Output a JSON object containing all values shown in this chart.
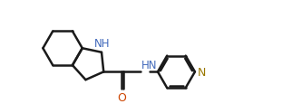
{
  "bg_color": "#ffffff",
  "line_color": "#1a1a1a",
  "N_color": "#4169bb",
  "O_color": "#cc4400",
  "pyN_color": "#997700",
  "line_width": 1.8,
  "font_size": 9,
  "xlim": [
    0,
    9.5
  ],
  "ylim": [
    0,
    3.6
  ]
}
